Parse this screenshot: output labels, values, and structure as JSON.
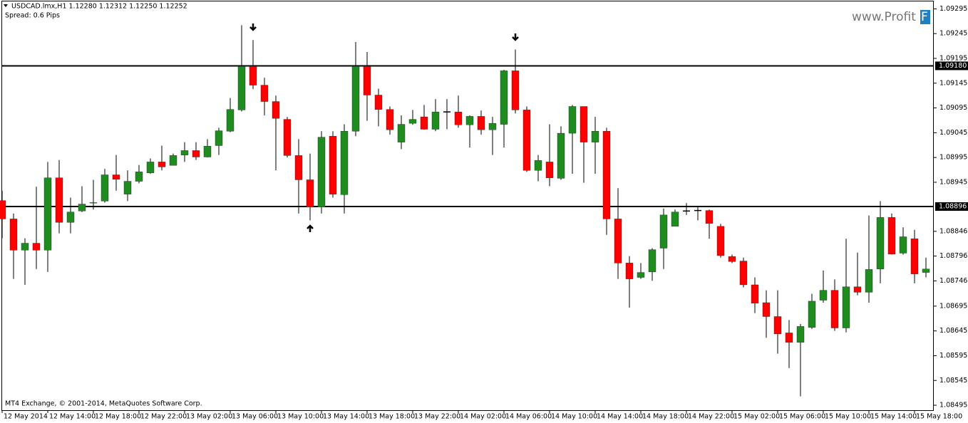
{
  "chart_data": {
    "type": "candlestick",
    "title": "USDCAD.lmx,H1  1.12280 1.12312 1.12250 1.12252",
    "subtitle": "Spread: 0.6 Pips",
    "footer": "MT4 Exchange, © 2001-2014, MetaQuotes Software Corp.",
    "watermark": {
      "text": "www.Profit",
      "highlight": "F"
    },
    "up_color": "#1e8c1e",
    "down_color": "#ff0000",
    "doji_color": "#000000",
    "categories": [
      "12 May 2014",
      null,
      null,
      null,
      "12 May 14:00",
      null,
      null,
      null,
      "12 May 18:00",
      null,
      null,
      null,
      "12 May 22:00",
      null,
      null,
      null,
      "13 May 02:00",
      null,
      null,
      null,
      "13 May 06:00",
      null,
      null,
      null,
      "13 May 10:00",
      null,
      null,
      null,
      "13 May 14:00",
      null,
      null,
      null,
      "13 May 18:00",
      null,
      null,
      null,
      "13 May 22:00",
      null,
      null,
      null,
      "14 May 02:00",
      null,
      null,
      null,
      "14 May 06:00",
      null,
      null,
      null,
      "14 May 10:00",
      null,
      null,
      null,
      "14 May 14:00",
      null,
      null,
      null,
      "14 May 18:00",
      null,
      null,
      null,
      "14 May 22:00",
      null,
      null,
      null,
      "15 May 02:00",
      null,
      null,
      null,
      "15 May 06:00",
      null,
      null,
      null,
      "15 May 10:00",
      null,
      null,
      null,
      "15 May 14:00",
      null,
      null,
      null,
      "15 May 18:00",
      null
    ],
    "open": [
      1.08908,
      1.08871,
      1.08808,
      1.08822,
      1.08808,
      1.08954,
      1.08864,
      1.08887,
      1.08903,
      1.08907,
      1.0896,
      1.08921,
      1.08947,
      1.08964,
      1.08986,
      1.08979,
      1.09,
      1.09009,
      1.08996,
      1.09019,
      1.09048,
      1.09091,
      1.09179,
      1.09141,
      1.09108,
      1.09072,
      1.08999,
      1.0895,
      1.08895,
      1.09038,
      1.0892,
      1.09048,
      1.09179,
      1.09121,
      1.09092,
      1.09026,
      1.09064,
      1.09077,
      1.09052,
      1.09087,
      1.09087,
      1.09061,
      1.09078,
      1.09051,
      1.09062,
      1.0917,
      1.09091,
      1.08969,
      1.08986,
      1.08953,
      1.09044,
      1.09098,
      1.09026,
      1.09048,
      1.08871,
      1.08782,
      1.08753,
      1.08764,
      1.08812,
      1.08856,
      1.08887,
      1.08888,
      1.08888,
      1.08856,
      1.08795,
      1.08786,
      1.08738,
      1.08702,
      1.08674,
      1.08641,
      1.08622,
      1.08652,
      1.08707,
      1.08727,
      1.08651,
      1.08734,
      1.08723,
      1.0877,
      1.08874,
      1.08802,
      1.08831,
      1.08763
    ],
    "high": [
      1.08928,
      1.08882,
      1.08832,
      1.08936,
      1.08986,
      1.0899,
      1.08914,
      1.08937,
      1.0895,
      1.08972,
      1.09,
      1.08969,
      1.0898,
      1.08993,
      1.09019,
      1.09003,
      1.09026,
      1.09026,
      1.09032,
      1.09055,
      1.09115,
      1.09262,
      1.09232,
      1.09156,
      1.0912,
      1.09077,
      1.09032,
      1.09003,
      1.09048,
      1.09048,
      1.09062,
      1.09228,
      1.09208,
      1.09134,
      1.09098,
      1.0908,
      1.09091,
      1.09101,
      1.09113,
      1.09113,
      1.0912,
      1.0908,
      1.0909,
      1.09077,
      1.09172,
      1.09213,
      1.09098,
      1.09,
      1.09062,
      1.09058,
      1.09101,
      1.09098,
      1.09077,
      1.09055,
      1.08933,
      1.08796,
      1.08782,
      1.08812,
      1.08892,
      1.0889,
      1.08903,
      1.08897,
      1.0889,
      1.08861,
      1.08799,
      1.08793,
      1.08753,
      1.08727,
      1.08727,
      1.08667,
      1.08659,
      1.0872,
      1.08767,
      1.08749,
      1.08831,
      1.08803,
      1.08878,
      1.08907,
      1.08882,
      1.08854,
      1.08849,
      1.08793
    ],
    "low": [
      1.08832,
      1.0875,
      1.08738,
      1.0877,
      1.08764,
      1.08842,
      1.08842,
      1.08885,
      1.0889,
      1.08904,
      1.08928,
      1.08907,
      1.08943,
      1.08962,
      1.08969,
      1.08979,
      1.08986,
      1.0899,
      1.08995,
      1.09,
      1.09046,
      1.09088,
      1.09133,
      1.0908,
      1.08969,
      1.08995,
      1.08882,
      1.08868,
      1.08882,
      1.08914,
      1.08882,
      1.09038,
      1.09069,
      1.09058,
      1.09041,
      1.09012,
      1.09061,
      1.09051,
      1.09048,
      1.09052,
      1.09055,
      1.09015,
      1.09041,
      1.09,
      1.09015,
      1.09084,
      1.08966,
      1.08947,
      1.08937,
      1.0895,
      1.08962,
      1.08944,
      1.08962,
      1.08839,
      1.0875,
      1.08692,
      1.0875,
      1.08746,
      1.0877,
      1.08856,
      1.08879,
      1.08868,
      1.08831,
      1.08793,
      1.08782,
      1.08733,
      1.08681,
      1.08631,
      1.08599,
      1.0857,
      1.08513,
      1.08649,
      1.08702,
      1.08645,
      1.08642,
      1.08717,
      1.08702,
      1.08741,
      1.08799,
      1.08799,
      1.08741,
      1.08753
    ],
    "close": [
      1.08871,
      1.08808,
      1.08822,
      1.08808,
      1.08954,
      1.08864,
      1.08885,
      1.08901,
      1.08904,
      1.0896,
      1.08951,
      1.08947,
      1.08966,
      1.08986,
      1.08976,
      1.08999,
      1.09009,
      1.08996,
      1.09018,
      1.09049,
      1.09092,
      1.09179,
      1.09141,
      1.09108,
      1.09074,
      1.08999,
      1.0895,
      1.08895,
      1.09036,
      1.08921,
      1.09048,
      1.09179,
      1.09121,
      1.09092,
      1.09051,
      1.09062,
      1.09072,
      1.09052,
      1.09087,
      1.09087,
      1.09061,
      1.09078,
      1.09051,
      1.09064,
      1.0917,
      1.09091,
      1.08969,
      1.08989,
      1.08954,
      1.09044,
      1.09098,
      1.09026,
      1.09048,
      1.08871,
      1.08782,
      1.0875,
      1.08763,
      1.08809,
      1.08879,
      1.08885,
      1.08887,
      1.08888,
      1.08862,
      1.08797,
      1.08785,
      1.08738,
      1.08701,
      1.08674,
      1.08639,
      1.08622,
      1.08654,
      1.08705,
      1.08727,
      1.08651,
      1.08734,
      1.08723,
      1.08769,
      1.08874,
      1.088,
      1.08835,
      1.0876,
      1.0877
    ],
    "hlines": [
      {
        "value": 1.0918,
        "label": "1.09180"
      },
      {
        "value": 1.08896,
        "label": "1.08896"
      }
    ],
    "ylim": [
      1.08485,
      1.0931
    ],
    "yticks": [
      1.09295,
      1.09245,
      1.09195,
      1.09145,
      1.09095,
      1.09045,
      1.08995,
      1.08945,
      1.08846,
      1.08796,
      1.08746,
      1.08695,
      1.08645,
      1.08595,
      1.08545,
      1.08495
    ]
  }
}
